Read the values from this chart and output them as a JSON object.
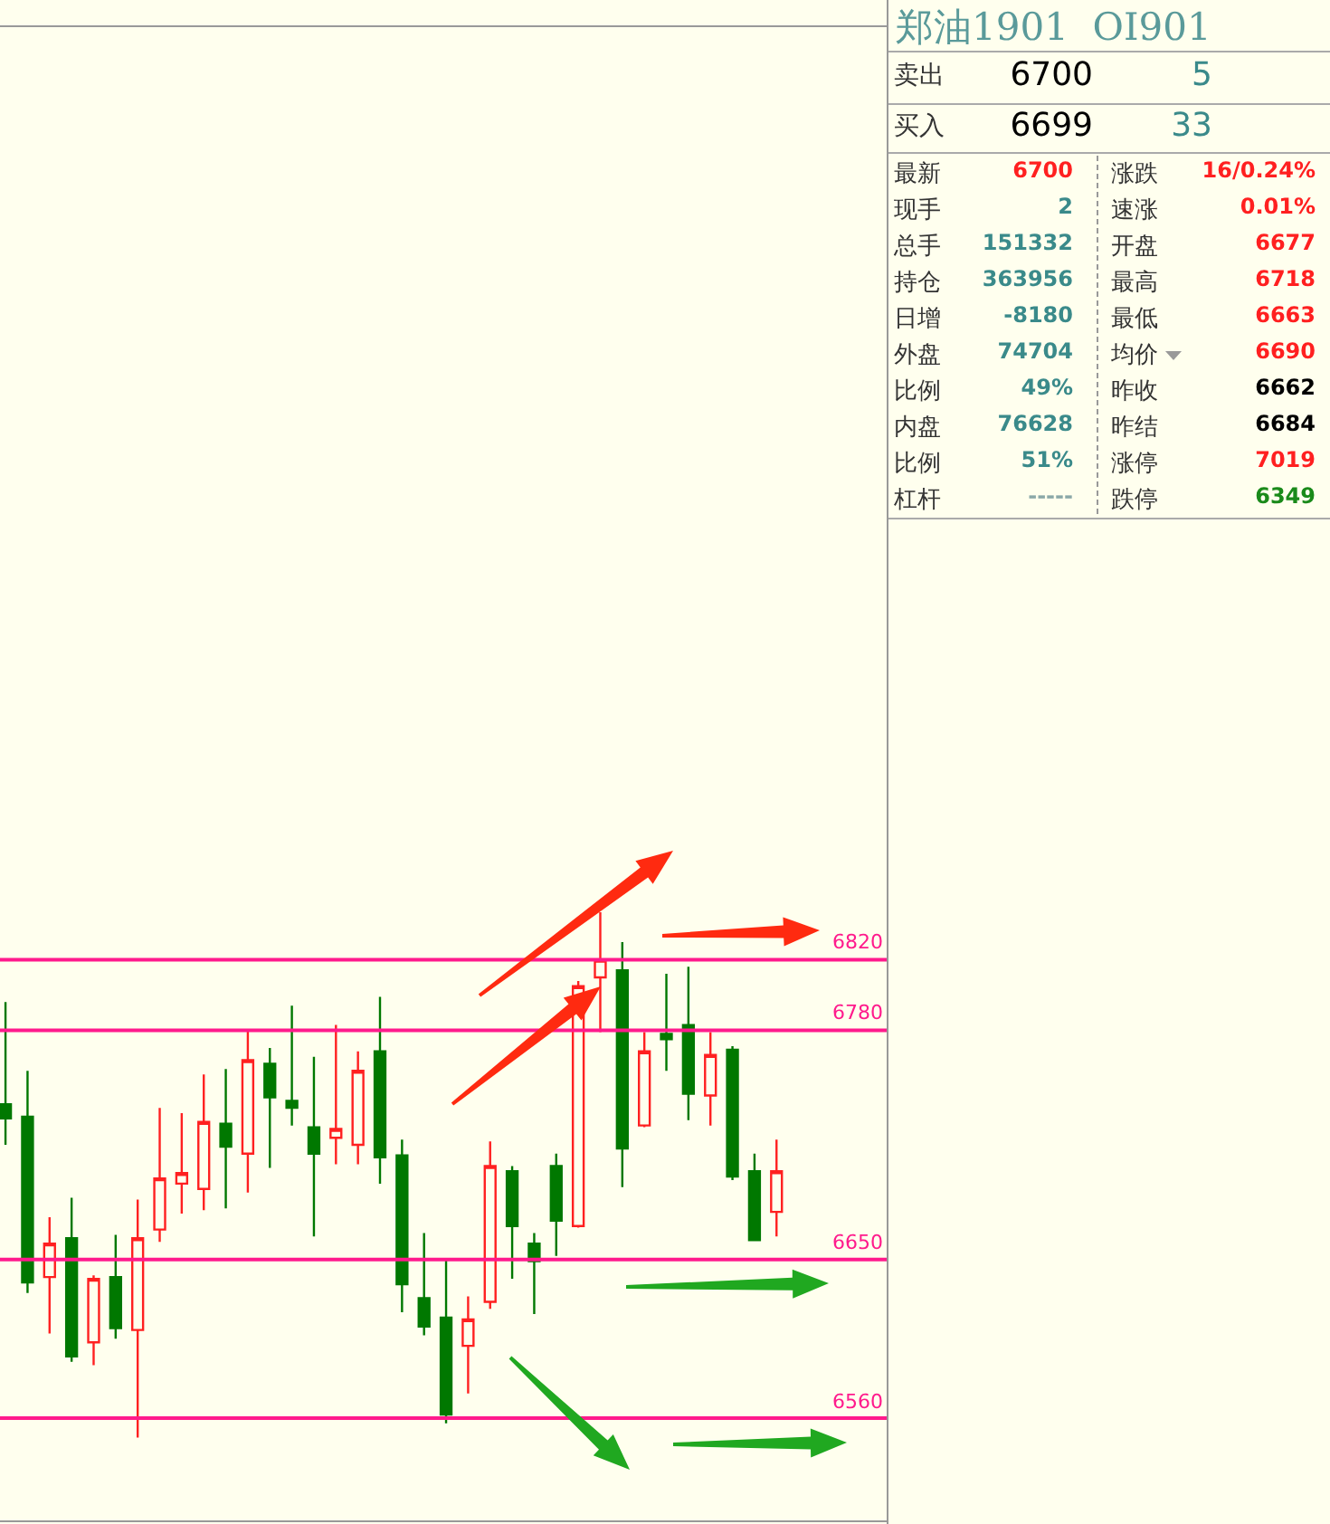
{
  "chart_data": [
    {
      "type": "candlestick",
      "categories": [
        null,
        null,
        null,
        null,
        null,
        null,
        null,
        null,
        null,
        null,
        null,
        null,
        null,
        null,
        null,
        null,
        null,
        null,
        null,
        null,
        null,
        null,
        null,
        null,
        null,
        null,
        null,
        null,
        null,
        null,
        null,
        null,
        null,
        null,
        null,
        null
      ],
      "ohlc": [
        [
          6738,
          6796,
          6715,
          6730
        ],
        [
          6731,
          6757,
          6631,
          6637
        ],
        [
          6640,
          6674,
          6608,
          6659
        ],
        [
          6662,
          6685,
          6592,
          6595
        ],
        [
          6603,
          6641,
          6590,
          6639
        ],
        [
          6640,
          6664,
          6605,
          6611
        ],
        [
          6610,
          6684,
          6549,
          6662
        ],
        [
          6667,
          6736,
          6660,
          6696
        ],
        [
          6693,
          6733,
          6676,
          6699
        ],
        [
          6690,
          6755,
          6678,
          6728
        ],
        [
          6727,
          6758,
          6679,
          6714
        ],
        [
          6710,
          6780,
          6688,
          6763
        ],
        [
          6761,
          6770,
          6702,
          6742
        ],
        [
          6740,
          6794,
          6726,
          6736
        ],
        [
          6725,
          6765,
          6663,
          6710
        ],
        [
          6719,
          6783,
          6704,
          6724
        ],
        [
          6715,
          6768,
          6704,
          6757
        ],
        [
          6768,
          6799,
          6693,
          6708
        ],
        [
          6709,
          6718,
          6620,
          6636
        ],
        [
          6628,
          6665,
          6607,
          6612
        ],
        [
          6617,
          6650,
          6557,
          6562
        ],
        [
          6601,
          6629,
          6574,
          6616
        ],
        [
          6626,
          6717,
          6622,
          6703
        ],
        [
          6700,
          6703,
          6639,
          6669
        ],
        [
          6659,
          6665,
          6619,
          6649
        ],
        [
          6703,
          6710,
          6652,
          6672
        ],
        [
          6669,
          6808,
          6668,
          6805
        ],
        [
          6810,
          6847,
          6779,
          6820
        ],
        [
          6814,
          6830,
          6691,
          6713
        ],
        [
          6726,
          6779,
          6725,
          6768
        ],
        [
          6778,
          6812,
          6757,
          6775
        ],
        [
          6783,
          6816,
          6729,
          6744
        ],
        [
          6743,
          6779,
          6726,
          6766
        ],
        [
          6769,
          6771,
          6695,
          6697
        ],
        [
          6700,
          6710,
          6661,
          6661
        ],
        [
          6677,
          6718,
          6663,
          6700
        ]
      ],
      "colors": [
        "#007800",
        "#007800",
        "#ff2020",
        "#007800",
        "#ff2020",
        "#007800",
        "#ff2020",
        "#ff2020",
        "#ff2020",
        "#ff2020",
        "#007800",
        "#ff2020",
        "#007800",
        "#007800",
        "#007800",
        "#ff2020",
        "#ff2020",
        "#007800",
        "#007800",
        "#007800",
        "#007800",
        "#ff2020",
        "#ff2020",
        "#007800",
        "#007800",
        "#007800",
        "#ff2020",
        "#ff2020",
        "#007800",
        "#ff2020",
        "#007800",
        "#007800",
        "#ff2020",
        "#007800",
        "#007800",
        "#ff2020"
      ],
      "ylim": [
        6502,
        7349
      ],
      "grid": false,
      "ref_lines": [
        {
          "axis": "y",
          "value": 6820,
          "label": "6820",
          "color": "#ff1a8c"
        },
        {
          "axis": "y",
          "value": 6780,
          "label": "6780",
          "color": "#ff1a8c"
        },
        {
          "axis": "y",
          "value": 6650,
          "label": "6650",
          "color": "#ff1a8c"
        },
        {
          "axis": "y",
          "value": 6560,
          "label": "6560",
          "color": "#ff1a8c"
        }
      ]
    },
    {
      "type": "other",
      "title": "郑油1901  OI901",
      "annotations": [
        "卖出",
        "6700",
        "5",
        "买入",
        "6699",
        "33",
        "最新",
        "6700",
        "涨跌",
        "16/0.24%",
        "现手",
        "2",
        "速涨",
        "0.01%",
        "总手",
        "151332",
        "开盘",
        "6677",
        "持仓",
        "363956",
        "最高",
        "6718",
        "日增",
        "-8180",
        "最低",
        "6663",
        "外盘",
        "74704",
        "均价",
        "6690",
        "比例",
        "49%",
        "昨收",
        "6662",
        "内盘",
        "76628",
        "昨结",
        "6684",
        "比例",
        "51%",
        "涨停",
        "7019",
        "杠杆",
        "-----",
        "跌停",
        "6349"
      ],
      "colors": [
        "#333333",
        "#000000",
        "#3a8a8a",
        "#333333",
        "#000000",
        "#3a8a8a",
        "#333333",
        "#ff2020",
        "#333333",
        "#ff2020",
        "#333333",
        "#3a8a8a",
        "#333333",
        "#ff2020",
        "#333333",
        "#3a8a8a",
        "#333333",
        "#ff2020",
        "#333333",
        "#3a8a8a",
        "#333333",
        "#ff2020",
        "#333333",
        "#3a8a8a",
        "#333333",
        "#ff2020",
        "#333333",
        "#3a8a8a",
        "#333333",
        "#ff2020",
        "#333333",
        "#3a8a8a",
        "#333333",
        "#000000",
        "#333333",
        "#3a8a8a",
        "#333333",
        "#000000",
        "#333333",
        "#3a8a8a",
        "#333333",
        "#ff2020",
        "#333333",
        "#8aa8a8",
        "#333333",
        "#1a8a1a"
      ]
    }
  ]
}
